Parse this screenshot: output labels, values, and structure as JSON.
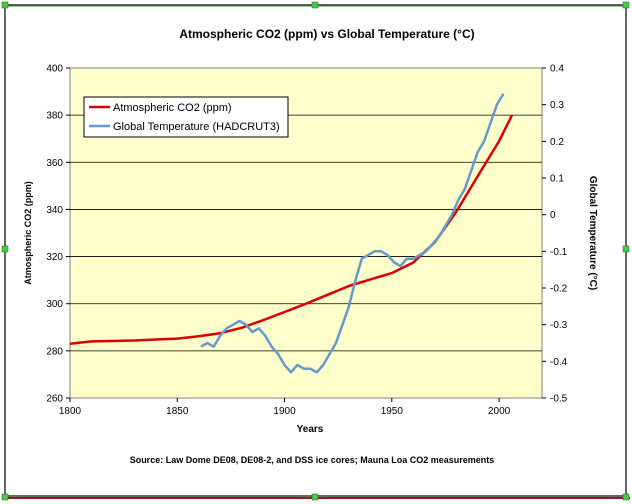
{
  "chart_data": {
    "type": "line",
    "title": "Atmospheric CO2 (ppm) vs Global Temperature (°C)",
    "xlabel": "Years",
    "ylabel_left": "Atmospheric CO2 (ppm)",
    "ylabel_right": "Global Temperature (°C)",
    "source": "Source:  Law Dome DE08, DE08-2, and DSS ice cores; Mauna Loa CO2 measurements",
    "xlim": [
      1800,
      2020
    ],
    "ylim_left": [
      260,
      400
    ],
    "ylim_right": [
      -0.5,
      0.4
    ],
    "x_ticks": [
      "1800",
      "1850",
      "1900",
      "1950",
      "2000"
    ],
    "y_left_ticks": [
      "260",
      "280",
      "300",
      "320",
      "340",
      "360",
      "380",
      "400"
    ],
    "y_right_ticks": [
      "-0.5",
      "-0.4",
      "-0.3",
      "-0.2",
      "-0.1",
      "0",
      "0.1",
      "0.2",
      "0.3",
      "0.4"
    ],
    "grid": true,
    "legend_position": "top-left",
    "series": [
      {
        "name": "Atmospheric CO2 (ppm)",
        "axis": "left",
        "color": "#dd0000",
        "x": [
          1800,
          1810,
          1820,
          1830,
          1840,
          1850,
          1860,
          1870,
          1880,
          1890,
          1900,
          1910,
          1920,
          1930,
          1940,
          1950,
          1960,
          1970,
          1980,
          1990,
          2000,
          2006
        ],
        "y": [
          283,
          284,
          284.2,
          284.4,
          284.8,
          285.2,
          286.2,
          287.5,
          289.8,
          293,
          296.5,
          300,
          303.8,
          307.5,
          310.3,
          313,
          317.5,
          326,
          339,
          354,
          369,
          380
        ]
      },
      {
        "name": "Global Temperature (HADCRUT3)",
        "axis": "right",
        "color": "#6699cc",
        "x": [
          1861,
          1864,
          1867,
          1870,
          1873,
          1876,
          1879,
          1882,
          1885,
          1888,
          1891,
          1894,
          1897,
          1900,
          1903,
          1906,
          1909,
          1912,
          1915,
          1918,
          1921,
          1924,
          1927,
          1930,
          1933,
          1936,
          1939,
          1942,
          1945,
          1948,
          1951,
          1954,
          1957,
          1960,
          1963,
          1966,
          1969,
          1972,
          1975,
          1978,
          1981,
          1984,
          1987,
          1990,
          1993,
          1996,
          1999,
          2002
        ],
        "y": [
          -0.36,
          -0.35,
          -0.36,
          -0.33,
          -0.31,
          -0.3,
          -0.29,
          -0.3,
          -0.32,
          -0.31,
          -0.33,
          -0.36,
          -0.38,
          -0.41,
          -0.43,
          -0.41,
          -0.42,
          -0.42,
          -0.43,
          -0.41,
          -0.38,
          -0.35,
          -0.3,
          -0.25,
          -0.18,
          -0.12,
          -0.11,
          -0.1,
          -0.1,
          -0.11,
          -0.13,
          -0.14,
          -0.12,
          -0.12,
          -0.11,
          -0.1,
          -0.08,
          -0.06,
          -0.03,
          0.0,
          0.04,
          0.07,
          0.12,
          0.17,
          0.2,
          0.25,
          0.3,
          0.33
        ]
      }
    ]
  }
}
